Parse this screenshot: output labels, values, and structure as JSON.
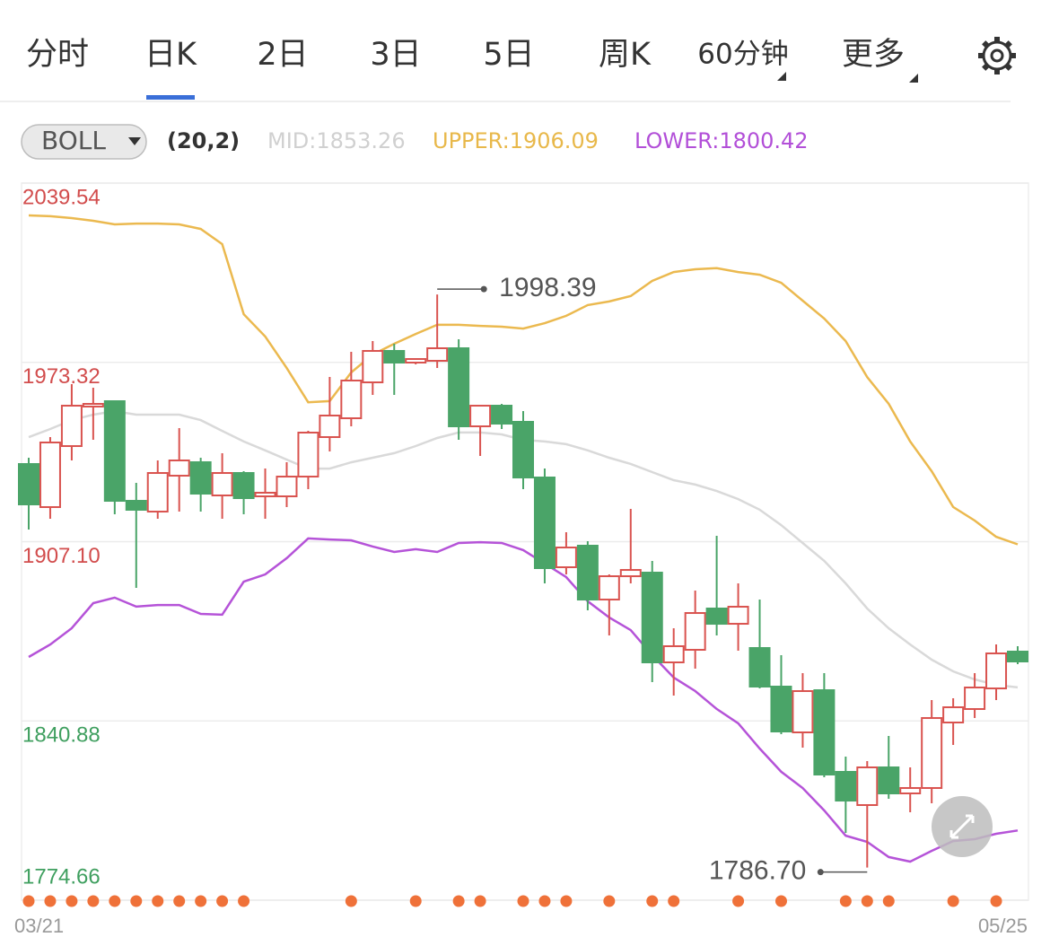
{
  "tabs": [
    "分时",
    "日K",
    "2日",
    "3日",
    "5日",
    "周K",
    "60分钟",
    "更多"
  ],
  "active_tab": 1,
  "dropdown_tabs": [
    6,
    7
  ],
  "indicator": {
    "name": "BOLL",
    "params": "(20,2)",
    "mid": "MID:1853.26",
    "upper": "UPPER:1906.09",
    "lower": "LOWER:1800.42"
  },
  "chart_data": {
    "type": "candlestick",
    "categories": [
      "03/21",
      null,
      null,
      null,
      null,
      null,
      null,
      null,
      null,
      null,
      null,
      null,
      null,
      null,
      null,
      null,
      null,
      null,
      null,
      null,
      null,
      null,
      null,
      null,
      null,
      null,
      null,
      null,
      null,
      null,
      null,
      null,
      null,
      null,
      null,
      null,
      null,
      null,
      null,
      null,
      null,
      null,
      null,
      null,
      null,
      null,
      "05/25"
    ],
    "open": [
      1935.77,
      1919.86,
      1942.4,
      1956.99,
      1958.98,
      1922.18,
      1918.2,
      1931.46,
      1936.44,
      1924.17,
      1932.46,
      1923.84,
      1923.84,
      1931.13,
      1945.72,
      1952.68,
      1965.94,
      1977.55,
      1973.24,
      1973.9,
      1978.54,
      1949.7,
      1957.32,
      1951.36,
      1930.8,
      1897.65,
      1905.61,
      1885.71,
      1894.33,
      1895.66,
      1862.51,
      1867.15,
      1882.4,
      1876.76,
      1867.81,
      1853.56,
      1836.65,
      1852.23,
      1822.06,
      1809.8,
      1823.72,
      1814.11,
      1816.1,
      1840.3,
      1845.27,
      1852.89,
      1866.49
    ],
    "high": [
      1938.09,
      1945.72,
      1965.28,
      1963.95,
      1958.98,
      1928.81,
      1937.1,
      1949.03,
      1938.09,
      1939.75,
      1933.12,
      1934.12,
      1936.44,
      1948.04,
      1967.93,
      1977.21,
      1981.19,
      1980.2,
      1974.56,
      1998.39,
      1981.86,
      1957.32,
      1957.99,
      1955.33,
      1934.12,
      1910.58,
      1907.26,
      1895.0,
      1919.2,
      1899.97,
      1875.11,
      1889.03,
      1909.25,
      1891.68,
      1885.71,
      1865.16,
      1858.53,
      1858.53,
      1827.7,
      1826.04,
      1835.32,
      1823.72,
      1848.58,
      1849.25,
      1858.53,
      1869.14,
      1868.48
    ],
    "low": [
      1911.57,
      1915.55,
      1937.1,
      1944.73,
      1917.21,
      1890.02,
      1915.55,
      1918.2,
      1918.2,
      1915.55,
      1917.21,
      1915.55,
      1919.86,
      1926.49,
      1940.42,
      1949.7,
      1961.3,
      1961.3,
      1972.57,
      1971.25,
      1944.73,
      1938.76,
      1948.7,
      1926.49,
      1891.68,
      1895.0,
      1881.74,
      1872.45,
      1891.68,
      1855.21,
      1850.24,
      1860.19,
      1872.45,
      1866.82,
      1852.89,
      1835.99,
      1831.01,
      1820.07,
      1799.52,
      1786.7,
      1812.12,
      1807.14,
      1810.46,
      1832.01,
      1841.95,
      1848.58,
      1861.85
    ],
    "close": [
      1920.86,
      1943.73,
      1957.32,
      1957.99,
      1922.18,
      1918.87,
      1932.46,
      1937.1,
      1924.83,
      1932.46,
      1923.18,
      1925.17,
      1931.13,
      1947.38,
      1953.68,
      1966.61,
      1977.55,
      1973.24,
      1974.56,
      1978.54,
      1949.7,
      1957.32,
      1950.69,
      1930.8,
      1897.32,
      1904.94,
      1885.71,
      1894.33,
      1896.65,
      1862.51,
      1868.48,
      1880.74,
      1876.76,
      1883.06,
      1853.56,
      1836.98,
      1851.9,
      1821.07,
      1811.45,
      1823.72,
      1814.11,
      1816.1,
      1841.95,
      1845.93,
      1853.23,
      1865.82,
      1862.84
    ],
    "up_color": "#d9534f",
    "down_color": "#4aa468",
    "lines": [
      {
        "color": "#d9d9d9",
        "values": [
          1945.7,
          1948.7,
          1952.0,
          1954.0,
          1955.3,
          1954.0,
          1954.0,
          1954.0,
          1952.0,
          1948.0,
          1944.1,
          1940.8,
          1937.4,
          1934.1,
          1934.1,
          1936.4,
          1938.1,
          1939.8,
          1942.4,
          1945.4,
          1947.4,
          1947.4,
          1946.7,
          1944.7,
          1944.1,
          1943.1,
          1940.8,
          1938.1,
          1935.8,
          1932.8,
          1929.8,
          1928.2,
          1925.8,
          1922.8,
          1918.9,
          1913.2,
          1906.6,
          1900.0,
          1891.7,
          1882.4,
          1875.1,
          1869.1,
          1863.5,
          1859.2,
          1856.2,
          1854.2,
          1853.26
        ]
      },
      {
        "color": "#ebb94f",
        "values": [
          2027.6,
          2027.3,
          2026.6,
          2025.6,
          2024.3,
          2024.6,
          2024.6,
          2024.3,
          2022.6,
          2017.0,
          1991.1,
          1982.9,
          1971.2,
          1958.6,
          1959.0,
          1969.6,
          1976.2,
          1980.2,
          1983.8,
          1987.2,
          1987.2,
          1986.8,
          1986.5,
          1985.8,
          1987.8,
          1990.5,
          1994.5,
          1995.8,
          1997.8,
          2003.4,
          2006.7,
          2007.7,
          2008.1,
          2006.7,
          2005.7,
          2002.7,
          1996.1,
          1989.5,
          1981.2,
          1967.9,
          1958.0,
          1944.1,
          1933.1,
          1919.9,
          1914.9,
          1908.9,
          1906.09
        ]
      },
      {
        "color": "#b553d8",
        "values": [
          1864.5,
          1869.1,
          1875.1,
          1884.4,
          1886.4,
          1883.1,
          1883.7,
          1883.7,
          1880.4,
          1880.1,
          1892.3,
          1895.0,
          1901.0,
          1908.3,
          1907.9,
          1907.6,
          1905.3,
          1903.3,
          1904.3,
          1903.3,
          1906.6,
          1906.9,
          1906.6,
          1904.0,
          1899.0,
          1894.0,
          1885.1,
          1879.1,
          1874.4,
          1865.2,
          1856.9,
          1851.9,
          1845.3,
          1840.0,
          1830.7,
          1822.1,
          1816.1,
          1807.8,
          1798.5,
          1796.2,
          1790.6,
          1788.9,
          1792.9,
          1796.5,
          1797.2,
          1799.2,
          1800.42
        ]
      }
    ],
    "ylim": [
      1774.66,
      2039.54
    ],
    "yticks": [
      1774.66,
      1840.88,
      {
        "value": 1907.1,
        "label": "1907.10"
      },
      1973.32,
      2039.54
    ],
    "ytick_colors": [
      "#3f9f5f",
      "#3f9f5f",
      "#d24d4d",
      "#d24d4d",
      "#d24d4d"
    ],
    "grid": true,
    "high_label": "1998.39",
    "low_label": "1786.70",
    "event_dots": [
      0,
      1,
      2,
      3,
      4,
      5,
      6,
      7,
      8,
      9,
      10,
      15,
      18,
      20,
      21,
      23,
      24,
      25,
      27,
      29,
      30,
      33,
      35,
      38,
      39,
      40,
      43,
      45
    ],
    "event_dot_color": "#ef7139"
  }
}
